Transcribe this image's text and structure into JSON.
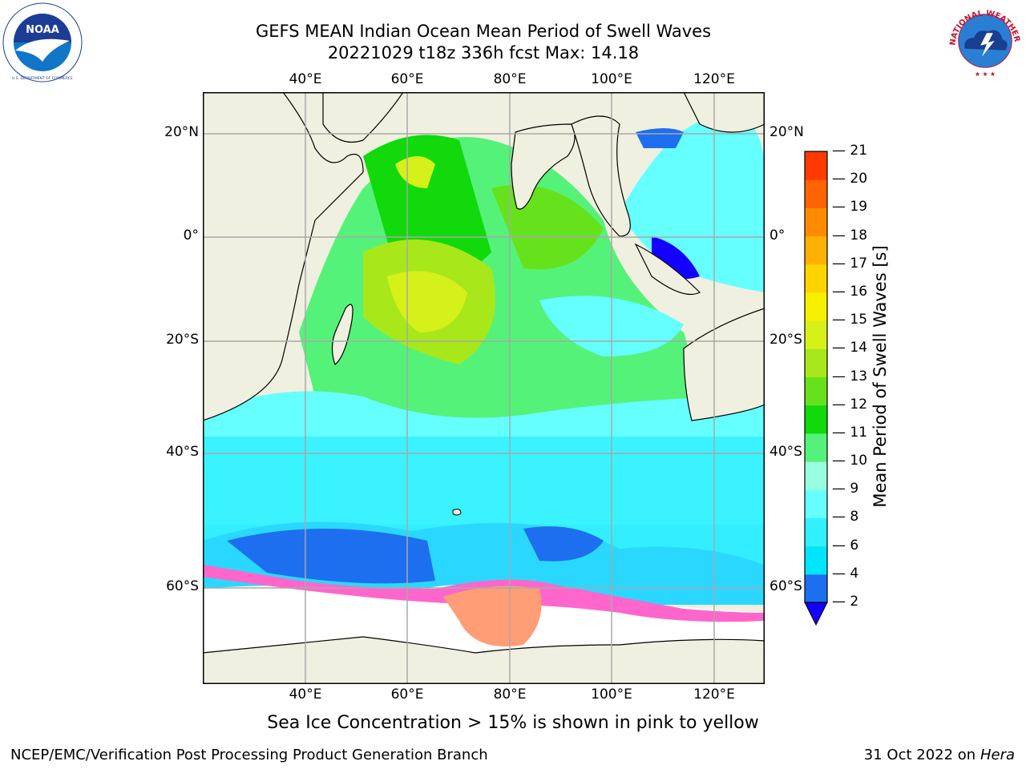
{
  "title": {
    "line1": "GEFS MEAN Indian Ocean Mean Period of Swell Waves",
    "line2": "20221029 t18z 336h fcst   Max: 14.18"
  },
  "logos": {
    "noaa_text": "NOAA",
    "noaa_ring": "NATIONAL OCEANIC AND ATMOSPHERIC ADMINISTRATION · U.S. DEPARTMENT OF COMMERCE",
    "nws_ring": "NATIONAL WEATHER SERVICE"
  },
  "map": {
    "lon_labels": [
      "40°E",
      "60°E",
      "80°E",
      "100°E",
      "120°E"
    ],
    "lat_labels": [
      "20°N",
      "0°",
      "20°S",
      "40°S",
      "60°S"
    ]
  },
  "colorbar": {
    "label": "Mean Period of Swell Waves [s]",
    "ticks": [
      "2",
      "4",
      "6",
      "8",
      "9",
      "10",
      "11",
      "12",
      "13",
      "14",
      "15",
      "16",
      "17",
      "18",
      "19",
      "20",
      "21"
    ],
    "colors": [
      "#1e6ef0",
      "#00e5ff",
      "#33f0ff",
      "#66ffff",
      "#99ffe0",
      "#55f27a",
      "#11d90c",
      "#66e21c",
      "#a8e81a",
      "#d6f01a",
      "#f5ef00",
      "#ffd400",
      "#ffb000",
      "#ff8c00",
      "#ff6400",
      "#ff3a00",
      "#ff0000"
    ],
    "extend_color": "#1400ff"
  },
  "note": "Sea Ice Concentration > 15% is shown in pink to yellow",
  "footer": {
    "left": "NCEP/EMC/Verification Post Processing Product Generation Branch",
    "right_prefix": "31 Oct 2022 on ",
    "right_machine": "Hera"
  }
}
